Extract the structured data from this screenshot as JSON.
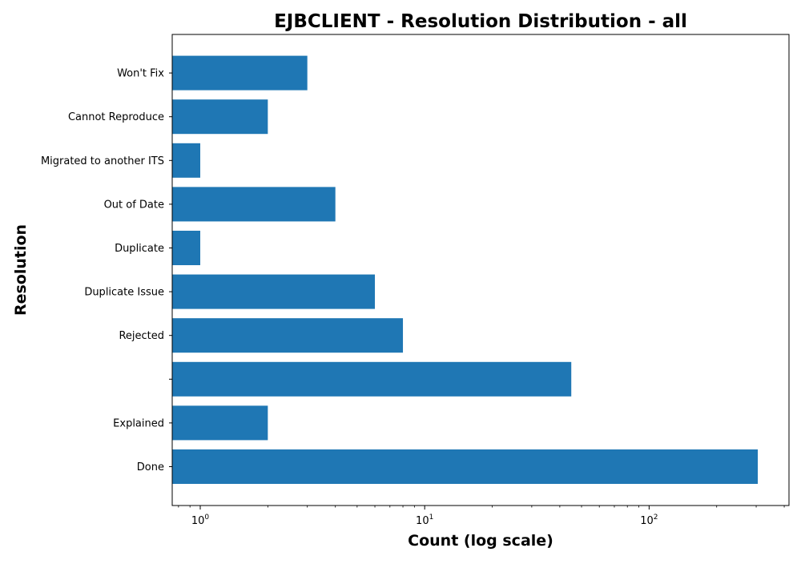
{
  "chart_data": {
    "type": "bar",
    "orientation": "horizontal",
    "title": "EJBCLIENT - Resolution Distribution - all",
    "xlabel": "Count (log scale)",
    "ylabel": "Resolution",
    "xscale": "log",
    "xlim": [
      0.75,
      420
    ],
    "x_ticks": [
      {
        "base": "10",
        "exp": "0",
        "value": 1
      },
      {
        "base": "10",
        "exp": "1",
        "value": 10
      },
      {
        "base": "10",
        "exp": "2",
        "value": 100
      }
    ],
    "categories": [
      "Done",
      "Explained",
      "",
      "Rejected",
      "Duplicate Issue",
      "Duplicate",
      "Out of Date",
      "Migrated to another ITS",
      "Cannot Reproduce",
      "Won't Fix"
    ],
    "values": [
      305,
      2,
      45,
      8,
      6,
      1,
      4,
      1,
      2,
      3
    ],
    "bar_color": "#1f77b4",
    "grid": false,
    "legend": "none"
  }
}
